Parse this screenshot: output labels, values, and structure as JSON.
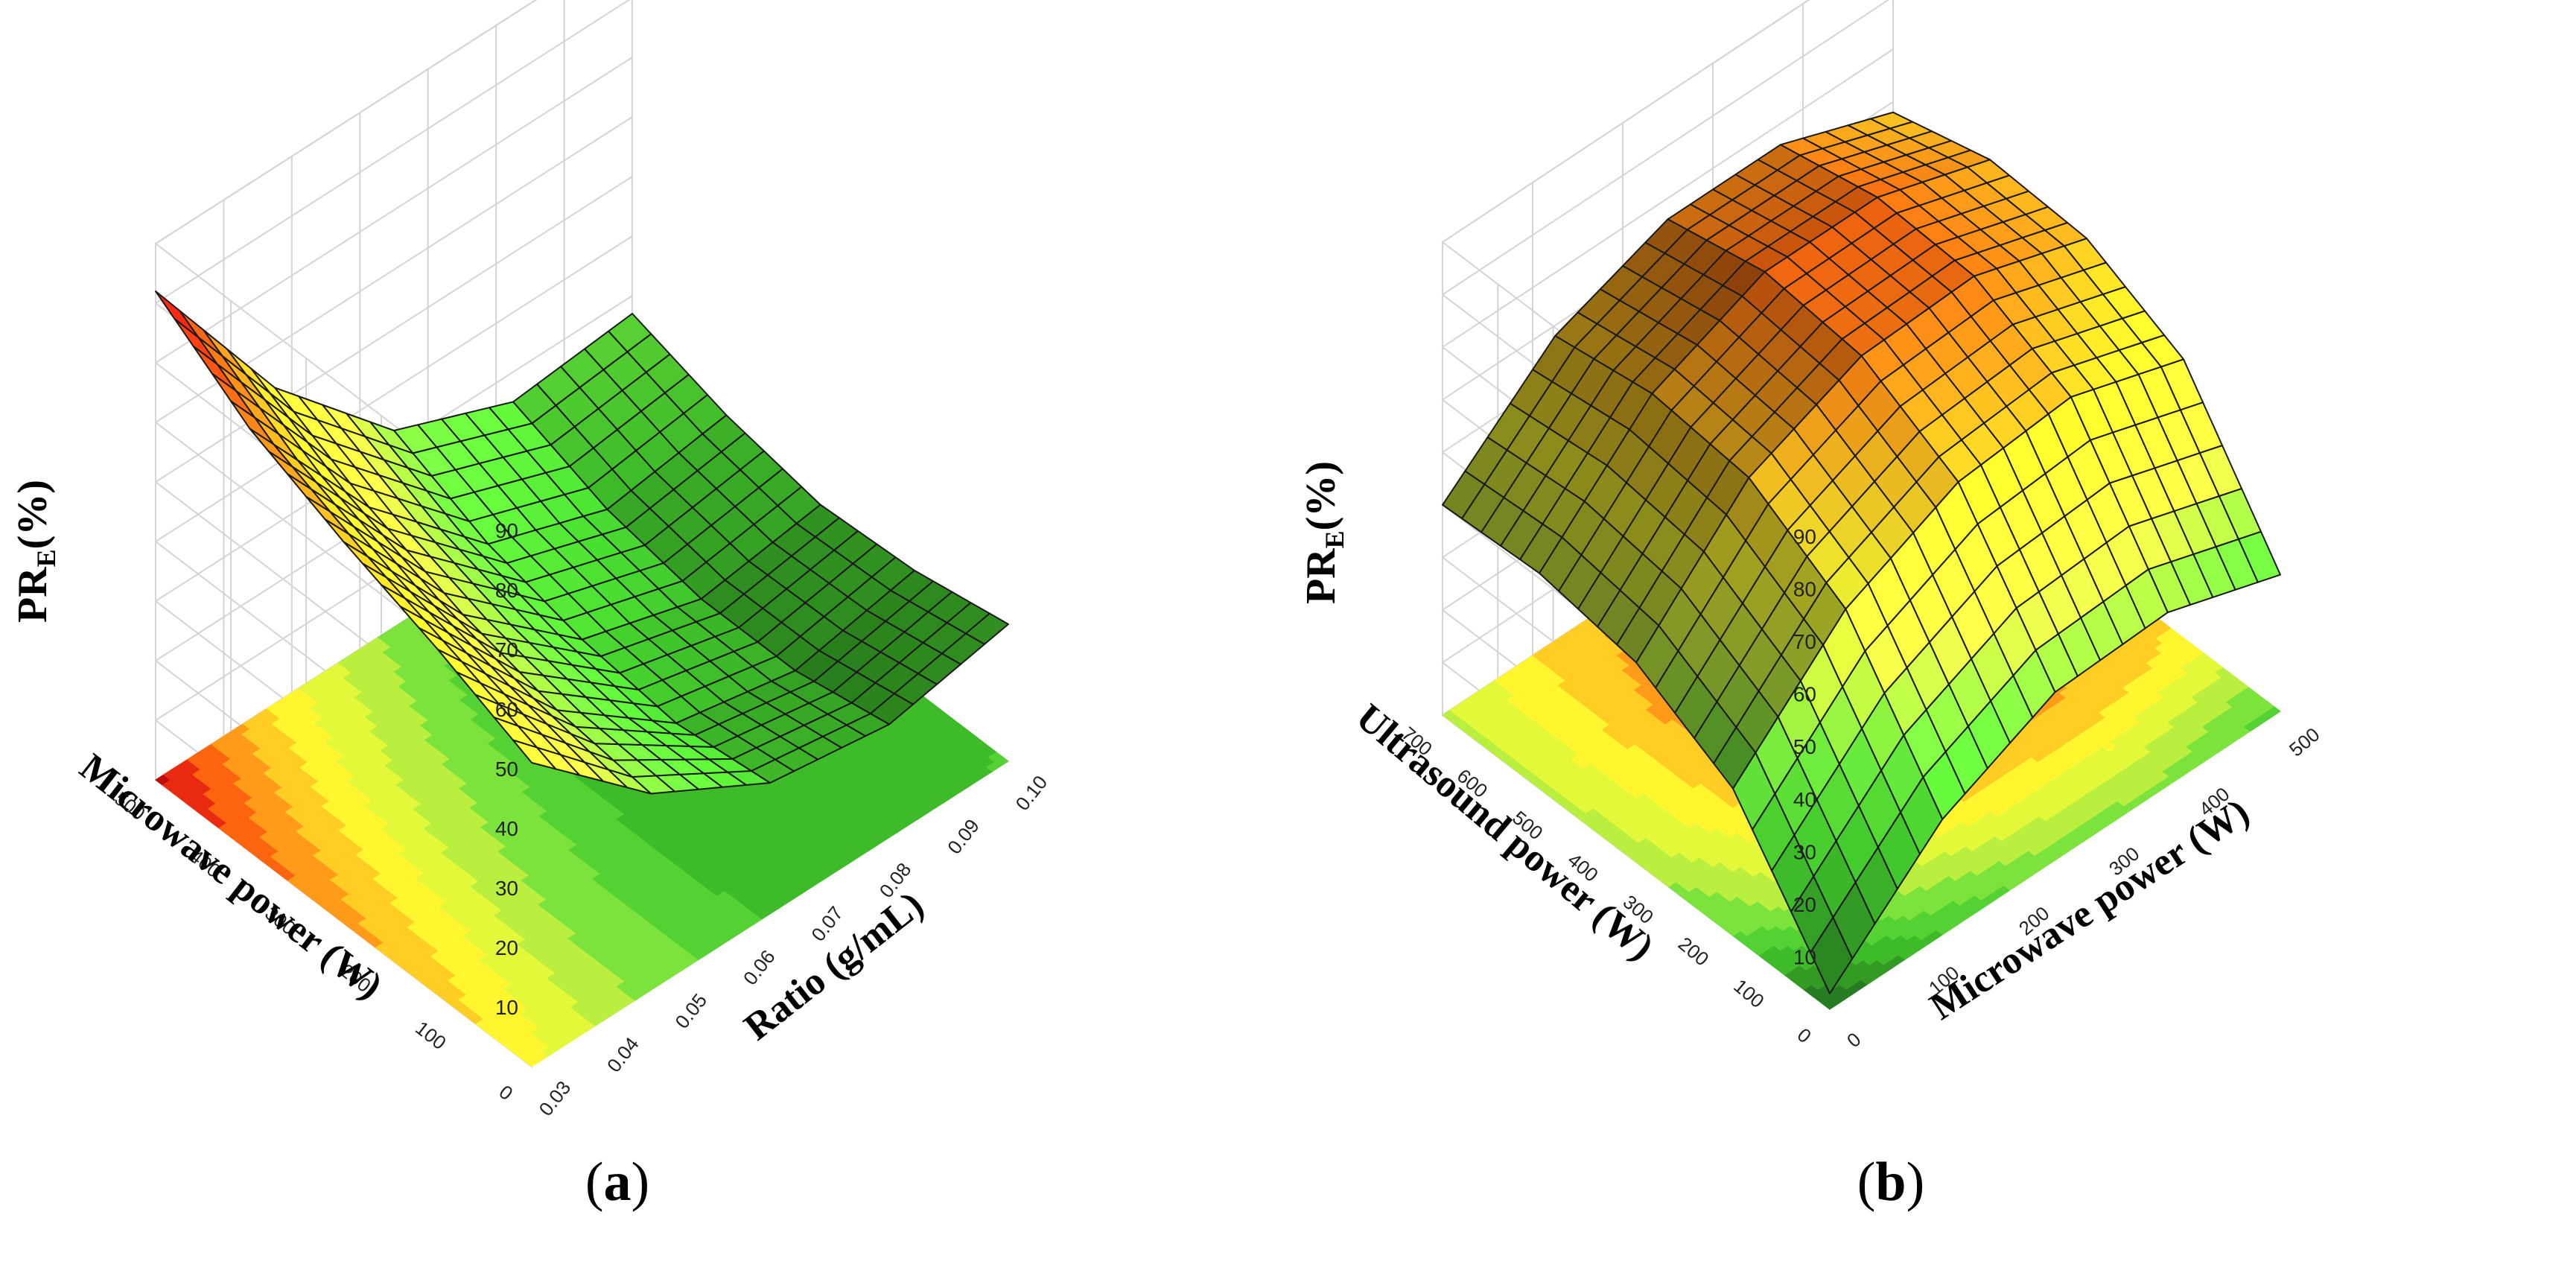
{
  "chart_data": [
    {
      "type": "surface",
      "panel_label": "a",
      "xlabel": "Ratio (g/mL)",
      "ylabel": "Microwave power (W)",
      "zlabel_main": "PR",
      "zlabel_sub": "E",
      "zlabel_unit": "(%)",
      "x_ticks": [
        "0.03",
        "0.04",
        "0.05",
        "0.06",
        "0.07",
        "0.08",
        "0.09",
        "0.10"
      ],
      "y_ticks": [
        "0",
        "100",
        "200",
        "300",
        "400",
        "500"
      ],
      "z_ticks": [
        "10",
        "20",
        "30",
        "40",
        "50",
        "60",
        "70",
        "80",
        "90"
      ],
      "xlim": [
        0.03,
        0.1
      ],
      "ylim": [
        0,
        500
      ],
      "zlim": [
        0,
        90
      ],
      "grid": true,
      "colormap": [
        "#1b5e1b",
        "#2e8b22",
        "#3fbf2a",
        "#66e03a",
        "#c8f040",
        "#ffff33",
        "#ffc020",
        "#ff6a10",
        "#e01010",
        "#8a0000"
      ],
      "surface": {
        "x": [
          0.03,
          0.0475,
          0.065,
          0.0825,
          0.1
        ],
        "y": [
          0,
          125,
          250,
          375,
          500
        ],
        "z": [
          [
            51,
            33,
            22,
            19,
            23
          ],
          [
            58,
            35,
            20,
            16,
            20
          ],
          [
            64,
            39,
            22,
            16,
            19
          ],
          [
            71,
            45,
            26,
            19,
            22
          ],
          [
            82,
            53,
            33,
            25,
            27
          ]
        ]
      }
    },
    {
      "type": "surface",
      "panel_label": "b",
      "xlabel": "Microwave power (W)",
      "ylabel": "Ultrasound power (W)",
      "zlabel_main": "PR",
      "zlabel_sub": "E",
      "zlabel_unit": "(%)",
      "x_ticks": [
        "0",
        "100",
        "200",
        "300",
        "400",
        "500"
      ],
      "y_ticks": [
        "0",
        "100",
        "200",
        "300",
        "400",
        "500",
        "600",
        "700"
      ],
      "z_ticks": [
        "10",
        "20",
        "30",
        "40",
        "50",
        "60",
        "70",
        "80",
        "90"
      ],
      "xlim": [
        0,
        500
      ],
      "ylim": [
        0,
        700
      ],
      "zlim": [
        0,
        90
      ],
      "grid": true,
      "colormap": [
        "#1b5e1b",
        "#2e8b22",
        "#3fbf2a",
        "#66e03a",
        "#c8f040",
        "#ffff33",
        "#ffc020",
        "#ff6a10",
        "#e01010",
        "#8a0000"
      ],
      "surface": {
        "x": [
          0,
          125,
          250,
          375,
          500
        ],
        "y": [
          0,
          175,
          350,
          525,
          700
        ],
        "z": [
          [
            3,
            22,
            32,
            33,
            26
          ],
          [
            28,
            48,
            58,
            60,
            53
          ],
          [
            38,
            59,
            68,
            69,
            62
          ],
          [
            41,
            61,
            70,
            70,
            63
          ],
          [
            40,
            58,
            66,
            66,
            58
          ]
        ]
      }
    }
  ]
}
